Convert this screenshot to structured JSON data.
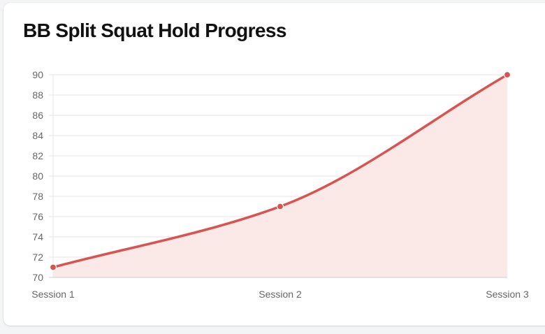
{
  "chart_data": {
    "type": "line",
    "title": "BB Split Squat Hold Progress",
    "categories": [
      "Session 1",
      "Session 2",
      "Session 3"
    ],
    "series": [
      {
        "values": [
          71,
          77,
          90
        ]
      }
    ],
    "ylim": [
      70,
      90
    ],
    "yticks": [
      70,
      72,
      74,
      76,
      78,
      80,
      82,
      84,
      86,
      88,
      90
    ],
    "grid": true,
    "area_fill": true,
    "colors": {
      "line": "#d9534f",
      "fill": "#fbe9e8",
      "grid": "#e5e5e5",
      "axis": "#cccccc"
    }
  }
}
